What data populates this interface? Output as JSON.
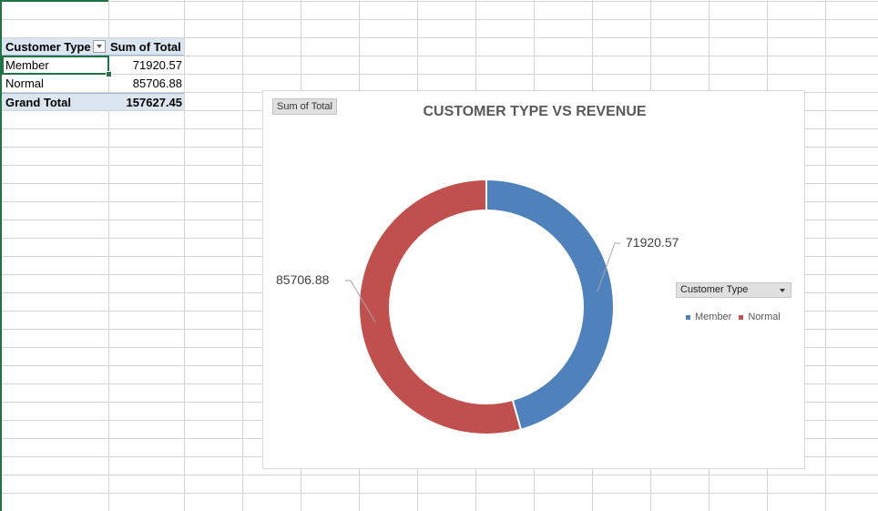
{
  "pivot": {
    "headers": [
      "Customer Type",
      "Sum of Total"
    ],
    "rows": [
      {
        "label": "Member",
        "value": "71920.57"
      },
      {
        "label": "Normal",
        "value": "85706.88"
      }
    ],
    "total": {
      "label": "Grand Total",
      "value": "157627.45"
    }
  },
  "chart": {
    "field_button": "Sum of Total",
    "legend_field": "Customer Type"
  },
  "chart_data": {
    "type": "pie",
    "variant": "doughnut",
    "title": "CUSTOMER TYPE VS REVENUE",
    "categories": [
      "Member",
      "Normal"
    ],
    "values": [
      71920.57,
      85706.88
    ],
    "labels": [
      "71920.57",
      "85706.88"
    ],
    "colors": [
      "#4f81bd",
      "#c0504d"
    ],
    "legend_placement": "right"
  }
}
